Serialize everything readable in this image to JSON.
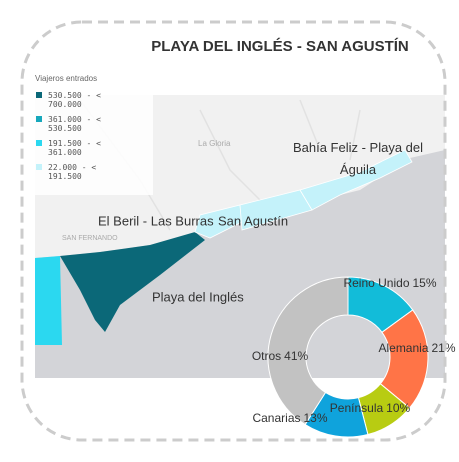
{
  "title": "PLAYA DEL INGLÉS - SAN AGUSTÍN",
  "legend": {
    "title": "Viajeros entrados",
    "items": [
      {
        "label": "530.500 - < 700.000",
        "color": "#0b6878"
      },
      {
        "label": "361.000 - < 530.500",
        "color": "#17a8bc"
      },
      {
        "label": "191.500 - < 361.000",
        "color": "#2bd8f0"
      },
      {
        "label": "22.000 - < 191.500",
        "color": "#c4f2fa"
      }
    ]
  },
  "map_labels": {
    "places": [
      "La Gloria",
      "SAN FERNANDO"
    ],
    "zones": [
      "Bahía Feliz - Playa del Águila",
      "El Beril - Las Burras",
      "San Agustín",
      "Playa del Inglés"
    ]
  },
  "chart_data": {
    "type": "pie",
    "categories": [
      "Reino Unido",
      "Alemania",
      "Península",
      "Canarias",
      "Otros"
    ],
    "values": [
      15,
      21,
      10,
      13,
      41
    ],
    "value_labels": [
      "15%",
      "21%",
      "10%",
      "13%",
      "41%"
    ],
    "colors": [
      "#12bcd9",
      "#ff7447",
      "#b8cc12",
      "#0fa3dc",
      "#c2c2c2"
    ]
  }
}
